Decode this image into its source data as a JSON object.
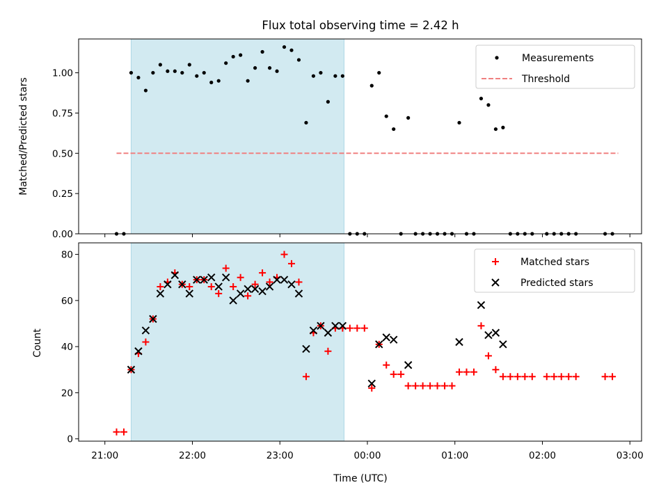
{
  "chart_data": [
    {
      "type": "scatter",
      "title": "Flux total observing time = 2.42 h",
      "xlabel": "",
      "ylabel": "Matched/Predicted stars",
      "ylim": [
        0,
        1.21
      ],
      "y_ticks": [
        "0.00",
        "0.25",
        "0.50",
        "0.75",
        "1.00"
      ],
      "y_tick_values": [
        0,
        0.25,
        0.5,
        0.75,
        1.0
      ],
      "legend_position": "top-right",
      "shaded_interval": [
        "21:18",
        "23:44"
      ],
      "shade_color": "#add8e6",
      "series": [
        {
          "name": "Measurements",
          "marker": "dot",
          "color": "#000000",
          "points": [
            [
              "21:08",
              0.0
            ],
            [
              "21:13",
              0.0
            ],
            [
              "21:18",
              1.0
            ],
            [
              "21:23",
              0.97
            ],
            [
              "21:28",
              0.89
            ],
            [
              "21:33",
              1.0
            ],
            [
              "21:38",
              1.05
            ],
            [
              "21:43",
              1.01
            ],
            [
              "21:48",
              1.01
            ],
            [
              "21:53",
              1.0
            ],
            [
              "21:58",
              1.05
            ],
            [
              "22:03",
              0.98
            ],
            [
              "22:08",
              1.0
            ],
            [
              "22:13",
              0.94
            ],
            [
              "22:18",
              0.95
            ],
            [
              "22:23",
              1.06
            ],
            [
              "22:28",
              1.1
            ],
            [
              "22:33",
              1.11
            ],
            [
              "22:38",
              0.95
            ],
            [
              "22:43",
              1.03
            ],
            [
              "22:48",
              1.13
            ],
            [
              "22:53",
              1.03
            ],
            [
              "22:58",
              1.01
            ],
            [
              "23:03",
              1.16
            ],
            [
              "23:08",
              1.14
            ],
            [
              "23:13",
              1.08
            ],
            [
              "23:18",
              0.69
            ],
            [
              "23:23",
              0.98
            ],
            [
              "23:28",
              1.0
            ],
            [
              "23:33",
              0.82
            ],
            [
              "23:38",
              0.98
            ],
            [
              "23:43",
              0.98
            ],
            [
              "23:48",
              0.0
            ],
            [
              "23:53",
              0.0
            ],
            [
              "23:58",
              0.0
            ],
            [
              "00:03",
              0.92
            ],
            [
              "00:08",
              1.0
            ],
            [
              "00:13",
              0.73
            ],
            [
              "00:18",
              0.65
            ],
            [
              "00:23",
              0.0
            ],
            [
              "00:28",
              0.72
            ],
            [
              "00:33",
              0.0
            ],
            [
              "00:38",
              0.0
            ],
            [
              "00:43",
              0.0
            ],
            [
              "00:48",
              0.0
            ],
            [
              "00:53",
              0.0
            ],
            [
              "00:58",
              0.0
            ],
            [
              "01:03",
              0.69
            ],
            [
              "01:08",
              0.0
            ],
            [
              "01:13",
              0.0
            ],
            [
              "01:18",
              0.84
            ],
            [
              "01:23",
              0.8
            ],
            [
              "01:28",
              0.65
            ],
            [
              "01:33",
              0.66
            ],
            [
              "01:38",
              0.0
            ],
            [
              "01:43",
              0.0
            ],
            [
              "01:48",
              0.0
            ],
            [
              "01:53",
              0.0
            ],
            [
              "02:03",
              0.0
            ],
            [
              "02:08",
              0.0
            ],
            [
              "02:13",
              0.0
            ],
            [
              "02:18",
              0.0
            ],
            [
              "02:23",
              0.0
            ],
            [
              "02:43",
              0.0
            ],
            [
              "02:48",
              0.0
            ]
          ]
        },
        {
          "name": "Threshold",
          "marker": "dashed-line",
          "color": "#f08080",
          "points": [
            [
              "21:08",
              0.5
            ],
            [
              "02:52",
              0.5
            ]
          ]
        }
      ]
    },
    {
      "type": "scatter",
      "title": "",
      "xlabel": "Time (UTC)",
      "ylabel": "Count",
      "ylim": [
        -1,
        85
      ],
      "y_ticks": [
        "0",
        "20",
        "40",
        "60",
        "80"
      ],
      "y_tick_values": [
        0,
        20,
        40,
        60,
        80
      ],
      "x_ticks": [
        "21:00",
        "22:00",
        "23:00",
        "00:00",
        "01:00",
        "02:00",
        "03:00"
      ],
      "legend_position": "top-right",
      "shaded_interval": [
        "21:18",
        "23:44"
      ],
      "shade_color": "#add8e6",
      "series": [
        {
          "name": "Matched stars",
          "marker": "plus",
          "color": "#ff0000",
          "points": [
            [
              "21:08",
              3
            ],
            [
              "21:13",
              3
            ],
            [
              "21:18",
              30
            ],
            [
              "21:23",
              37
            ],
            [
              "21:28",
              42
            ],
            [
              "21:33",
              52
            ],
            [
              "21:38",
              66
            ],
            [
              "21:43",
              68
            ],
            [
              "21:48",
              72
            ],
            [
              "21:53",
              67
            ],
            [
              "21:58",
              66
            ],
            [
              "22:03",
              69
            ],
            [
              "22:08",
              69
            ],
            [
              "22:13",
              66
            ],
            [
              "22:18",
              63
            ],
            [
              "22:23",
              74
            ],
            [
              "22:28",
              66
            ],
            [
              "22:33",
              70
            ],
            [
              "22:38",
              62
            ],
            [
              "22:43",
              67
            ],
            [
              "22:48",
              72
            ],
            [
              "22:53",
              68
            ],
            [
              "22:58",
              70
            ],
            [
              "23:03",
              80
            ],
            [
              "23:08",
              76
            ],
            [
              "23:13",
              68
            ],
            [
              "23:18",
              27
            ],
            [
              "23:23",
              46
            ],
            [
              "23:28",
              49
            ],
            [
              "23:33",
              38
            ],
            [
              "23:38",
              48
            ],
            [
              "23:43",
              48
            ],
            [
              "23:48",
              48
            ],
            [
              "23:53",
              48
            ],
            [
              "23:58",
              48
            ],
            [
              "00:03",
              22
            ],
            [
              "00:08",
              41
            ],
            [
              "00:13",
              32
            ],
            [
              "00:18",
              28
            ],
            [
              "00:23",
              28
            ],
            [
              "00:28",
              23
            ],
            [
              "00:33",
              23
            ],
            [
              "00:38",
              23
            ],
            [
              "00:43",
              23
            ],
            [
              "00:48",
              23
            ],
            [
              "00:53",
              23
            ],
            [
              "00:58",
              23
            ],
            [
              "01:03",
              29
            ],
            [
              "01:08",
              29
            ],
            [
              "01:13",
              29
            ],
            [
              "01:18",
              49
            ],
            [
              "01:23",
              36
            ],
            [
              "01:28",
              30
            ],
            [
              "01:33",
              27
            ],
            [
              "01:38",
              27
            ],
            [
              "01:43",
              27
            ],
            [
              "01:48",
              27
            ],
            [
              "01:53",
              27
            ],
            [
              "02:03",
              27
            ],
            [
              "02:08",
              27
            ],
            [
              "02:13",
              27
            ],
            [
              "02:18",
              27
            ],
            [
              "02:23",
              27
            ],
            [
              "02:43",
              27
            ],
            [
              "02:48",
              27
            ]
          ]
        },
        {
          "name": "Predicted stars",
          "marker": "x",
          "color": "#000000",
          "points": [
            [
              "21:18",
              30
            ],
            [
              "21:23",
              38
            ],
            [
              "21:28",
              47
            ],
            [
              "21:33",
              52
            ],
            [
              "21:38",
              63
            ],
            [
              "21:43",
              67
            ],
            [
              "21:48",
              71
            ],
            [
              "21:53",
              67
            ],
            [
              "21:58",
              63
            ],
            [
              "22:03",
              69
            ],
            [
              "22:08",
              69
            ],
            [
              "22:13",
              70
            ],
            [
              "22:18",
              66
            ],
            [
              "22:23",
              70
            ],
            [
              "22:28",
              60
            ],
            [
              "22:33",
              63
            ],
            [
              "22:38",
              65
            ],
            [
              "22:43",
              65
            ],
            [
              "22:48",
              64
            ],
            [
              "22:53",
              66
            ],
            [
              "22:58",
              69
            ],
            [
              "23:03",
              69
            ],
            [
              "23:08",
              67
            ],
            [
              "23:13",
              63
            ],
            [
              "23:18",
              39
            ],
            [
              "23:23",
              47
            ],
            [
              "23:28",
              49
            ],
            [
              "23:33",
              46
            ],
            [
              "23:38",
              49
            ],
            [
              "23:43",
              49
            ],
            [
              "00:03",
              24
            ],
            [
              "00:08",
              41
            ],
            [
              "00:13",
              44
            ],
            [
              "00:18",
              43
            ],
            [
              "00:28",
              32
            ],
            [
              "01:03",
              42
            ],
            [
              "01:18",
              58
            ],
            [
              "01:23",
              45
            ],
            [
              "01:28",
              46
            ],
            [
              "01:33",
              41
            ]
          ]
        }
      ]
    }
  ]
}
